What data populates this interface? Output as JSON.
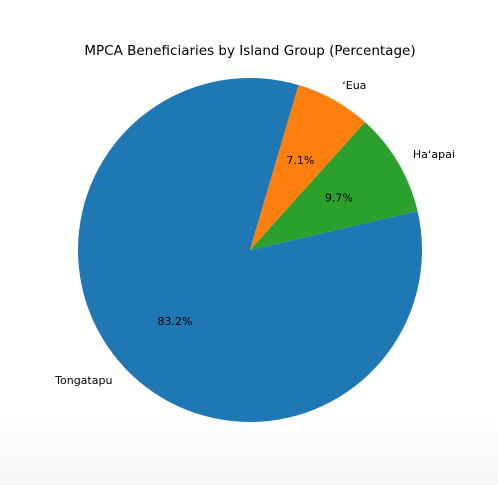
{
  "chart_data": {
    "type": "pie",
    "title": "MPCA Beneficiaries by Island Group (Percentage)",
    "labels": [
      "Tongatapu",
      "Haʻapai",
      "ʻEua"
    ],
    "values": [
      83.2,
      9.7,
      7.1
    ],
    "value_labels": [
      "83.2%",
      "9.7%",
      "7.1%"
    ],
    "colors": [
      "#1f77b4",
      "#2ca02c",
      "#ff7f0e"
    ],
    "start_angle_deg": 73.6,
    "direction": "counterclockwise",
    "legend": "none"
  }
}
